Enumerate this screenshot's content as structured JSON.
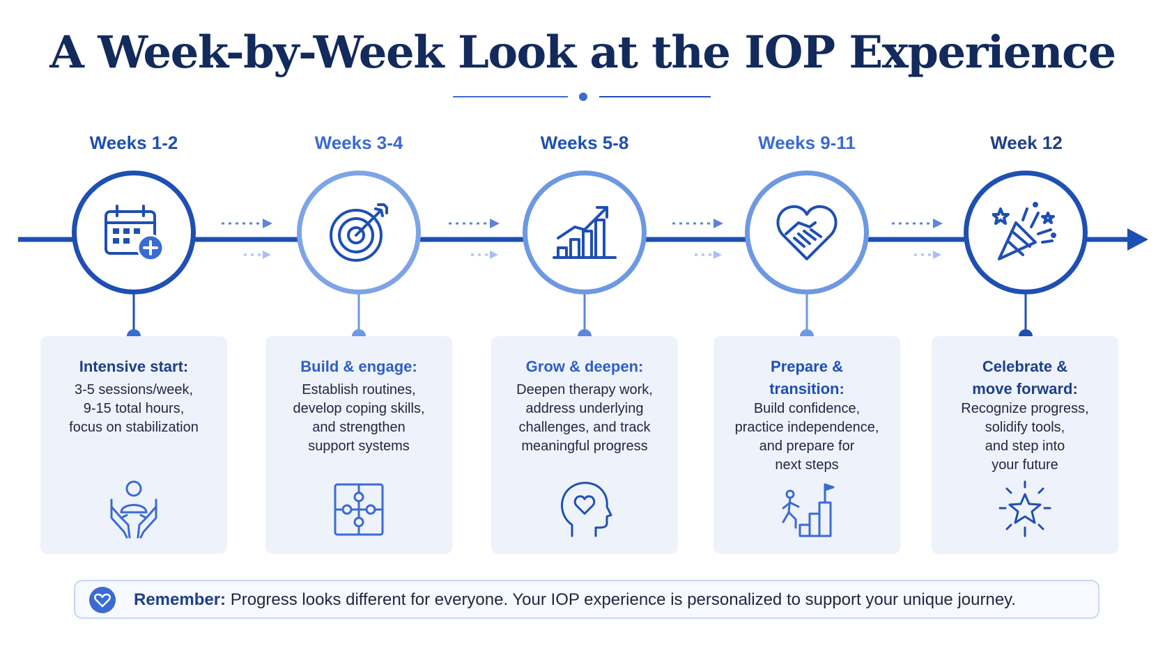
{
  "title": "A Week-by-Week Look at the IOP Experience",
  "colors": {
    "navy": "#122a5c",
    "primary": "#1e4fb3",
    "light": "#6d98e3",
    "card_bg": "#eef2fb"
  },
  "stages": [
    {
      "week": "Weeks 1-2",
      "icon": "calendar-plus-icon",
      "card_title": "Intensive start:",
      "card_text": "3-5 sessions/week,\n9-15 total hours,\nfocus on stabilization",
      "card_icon": "supportive-hands-icon"
    },
    {
      "week": "Weeks 3-4",
      "icon": "target-icon",
      "card_title": "Build & engage:",
      "card_text": "Establish routines,\ndevelop coping skills,\nand strengthen\nsupport systems",
      "card_icon": "puzzle-icon"
    },
    {
      "week": "Weeks 5-8",
      "icon": "growth-chart-icon",
      "card_title": "Grow & deepen:",
      "card_text": "Deepen therapy work,\naddress underlying\nchallenges, and track\nmeaningful progress",
      "card_icon": "head-heart-icon"
    },
    {
      "week": "Weeks 9-11",
      "icon": "handshake-heart-icon",
      "card_title": "Prepare &\ntransition:",
      "card_text": "Build confidence,\npractice independence,\nand prepare for\nnext steps",
      "card_icon": "climbing-stairs-icon"
    },
    {
      "week": "Week 12",
      "icon": "party-popper-icon",
      "card_title": "Celebrate &\nmove forward:",
      "card_text": "Recognize progress,\nsolidify tools,\nand step into\nyour future",
      "card_icon": "shining-star-icon"
    }
  ],
  "note": {
    "label": "Remember:",
    "text": " Progress looks different for everyone. Your IOP experience is personalized to support your unique journey.",
    "icon": "heart-icon"
  }
}
